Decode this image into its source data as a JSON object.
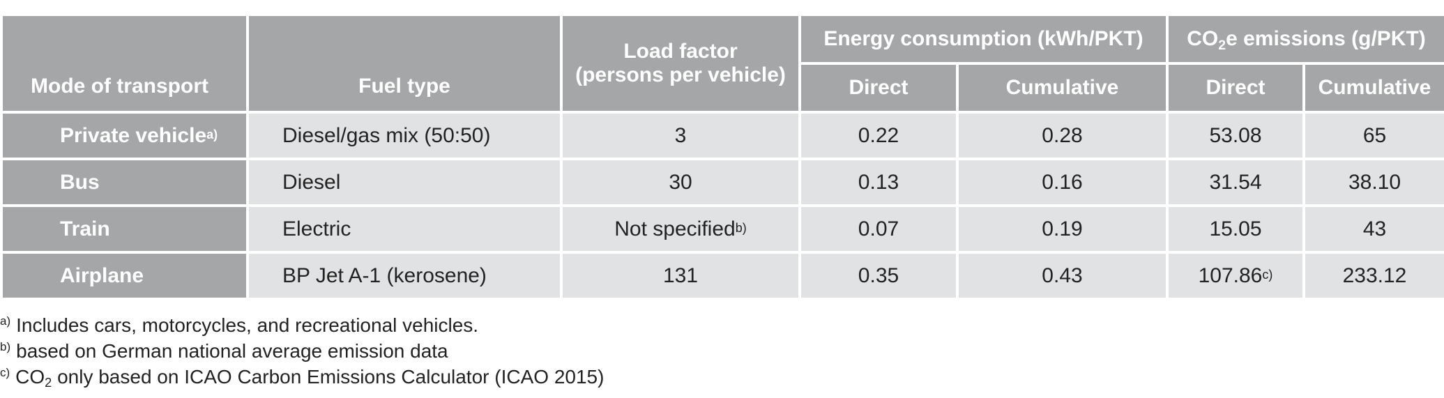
{
  "headers": {
    "mode": "Mode of transport",
    "fuel": "Fuel type",
    "load_line1": "Load factor",
    "load_line2": "(persons per vehicle)",
    "energy_group": "Energy consumption (kWh/PKT)",
    "co2_prefix": "CO",
    "co2_subscript": "2",
    "co2_suffix": "e emissions (g/PKT)",
    "direct": "Direct",
    "cumulative": "Cumulative"
  },
  "rows": [
    {
      "mode": "Private vehicle",
      "mode_note": "a)",
      "fuel": "Diesel/gas mix (50:50)",
      "load": "3",
      "load_note": "",
      "energy_direct": "0.22",
      "energy_cumulative": "0.28",
      "co2_direct": "53.08",
      "co2_direct_note": "",
      "co2_cumulative": "65"
    },
    {
      "mode": "Bus",
      "mode_note": "",
      "fuel": "Diesel",
      "load": "30",
      "load_note": "",
      "energy_direct": "0.13",
      "energy_cumulative": "0.16",
      "co2_direct": "31.54",
      "co2_direct_note": "",
      "co2_cumulative": "38.10"
    },
    {
      "mode": "Train",
      "mode_note": "",
      "fuel": "Electric",
      "load": "Not specified",
      "load_note": "b)",
      "energy_direct": "0.07",
      "energy_cumulative": "0.19",
      "co2_direct": "15.05",
      "co2_direct_note": "",
      "co2_cumulative": "43"
    },
    {
      "mode": "Airplane",
      "mode_note": "",
      "fuel": "BP Jet A-1 (kerosene)",
      "load": "131",
      "load_note": "",
      "energy_direct": "0.35",
      "energy_cumulative": "0.43",
      "co2_direct": "107.86",
      "co2_direct_note": "c)",
      "co2_cumulative": "233.12"
    }
  ],
  "footnotes": [
    {
      "mark": "a)",
      "text": "Includes cars, motorcycles, and recreational vehicles."
    },
    {
      "mark": "b)",
      "text": "based on German national average emission data"
    },
    {
      "mark": "c)",
      "text_prefix": "CO",
      "text_subscript": "2",
      "text_suffix": " only based on ICAO Carbon Emissions Calculator (ICAO 2015)"
    }
  ],
  "colors": {
    "header_bg": "#a5a6a8",
    "cell_bg": "#e1e2e3",
    "header_text": "#ffffff",
    "body_text": "#222222"
  }
}
